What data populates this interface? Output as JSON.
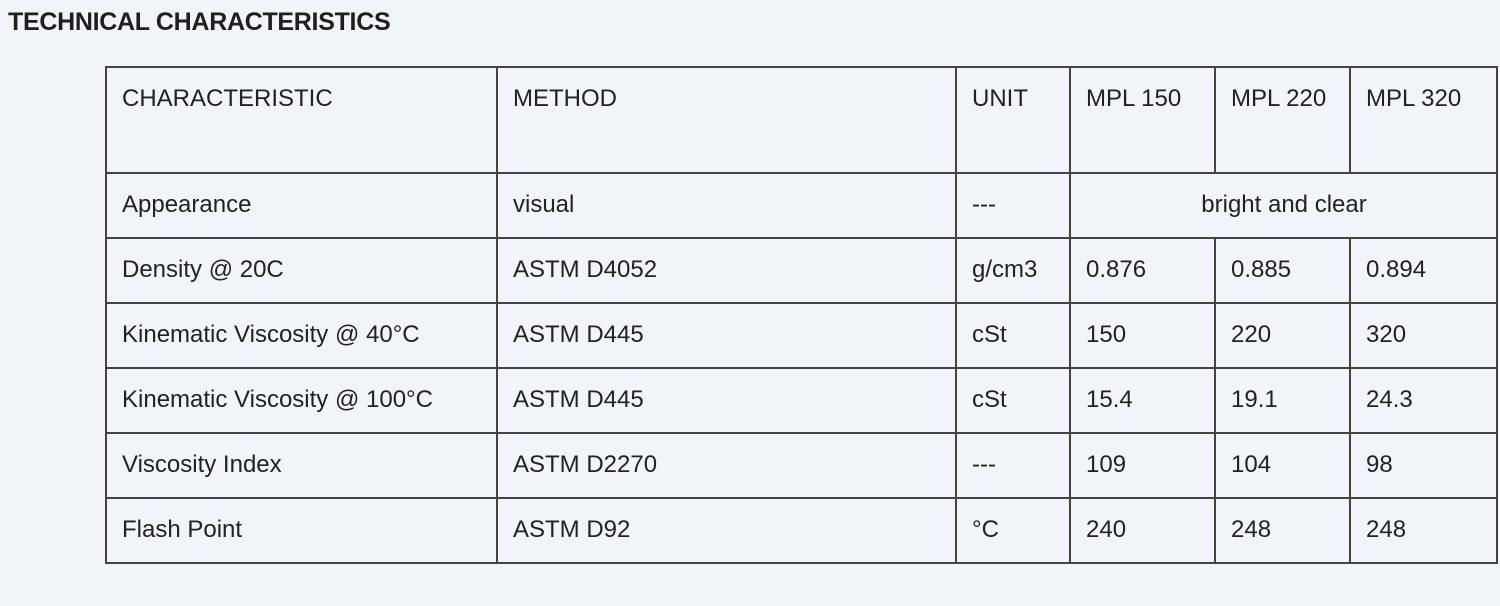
{
  "title": "TECHNICAL CHARACTERISTICS",
  "table": {
    "headers": [
      "CHARACTERISTIC",
      "METHOD",
      "UNIT",
      "MPL 150",
      "MPL 220",
      "MPL 320"
    ],
    "appearance": {
      "characteristic": "Appearance",
      "method": "visual",
      "unit": "---",
      "value": "bright and clear"
    },
    "rows": [
      [
        "Density @ 20C",
        "ASTM D4052",
        "g/cm3",
        "0.876",
        "0.885",
        "0.894"
      ],
      [
        "Kinematic Viscosity @ 40°C",
        "ASTM D445",
        "cSt",
        "150",
        "220",
        "320"
      ],
      [
        "Kinematic Viscosity @ 100°C",
        "ASTM D445",
        "cSt",
        "15.4",
        "19.1",
        "24.3"
      ],
      [
        "Viscosity Index",
        "ASTM D2270",
        "---",
        "109",
        "104",
        "98"
      ],
      [
        "Flash Point",
        "ASTM D92",
        "°C",
        "240",
        "248",
        "248"
      ]
    ]
  }
}
